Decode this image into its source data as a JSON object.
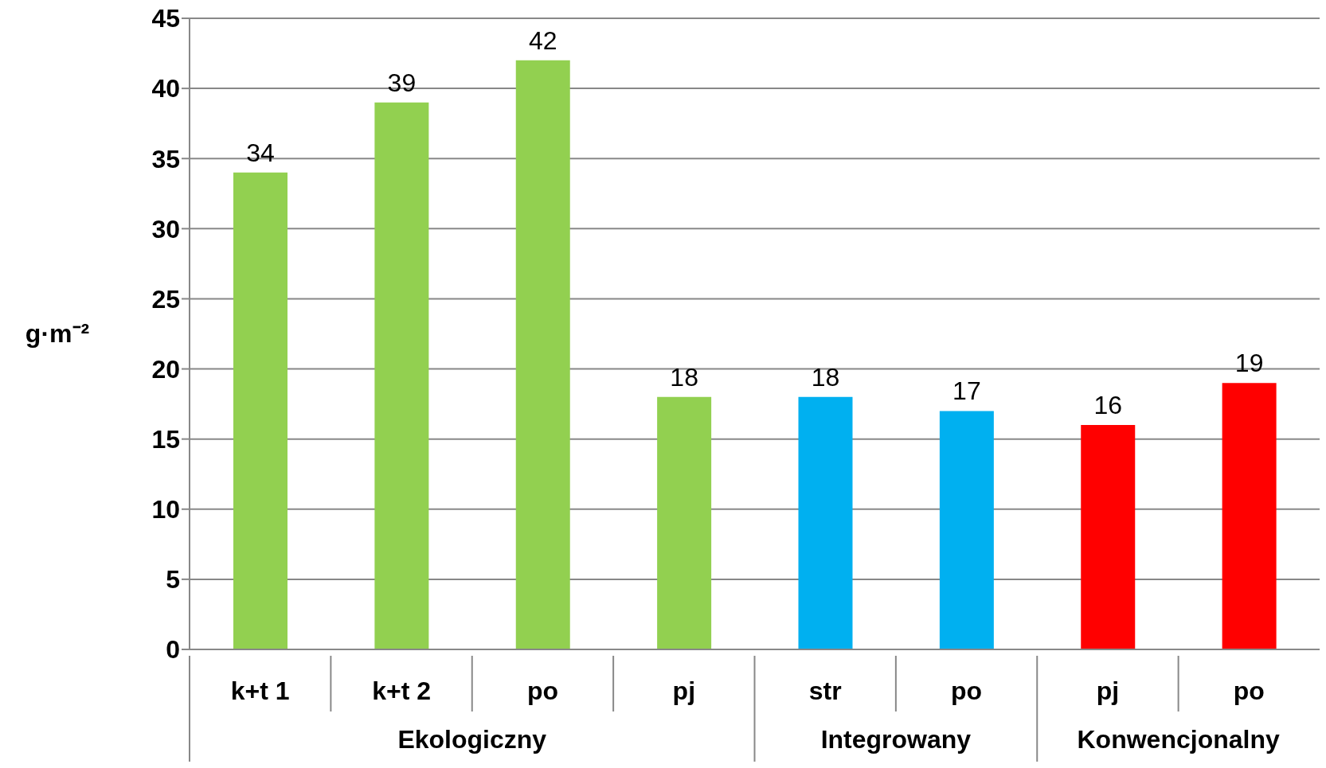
{
  "chart_data": {
    "type": "bar",
    "ylabel": "g·m⁻²",
    "categories": [
      "k+t 1",
      "k+t 2",
      "po",
      "pj",
      "str",
      "po",
      "pj",
      "po"
    ],
    "values": [
      34,
      39,
      42,
      18,
      18,
      17,
      16,
      19
    ],
    "colors": [
      "#92d050",
      "#92d050",
      "#92d050",
      "#92d050",
      "#00b0f0",
      "#00b0f0",
      "#ff0000",
      "#ff0000"
    ],
    "ylim": [
      0,
      45
    ],
    "yticks": [
      0,
      5,
      10,
      15,
      20,
      25,
      30,
      35,
      40,
      45
    ],
    "grid": "y",
    "data_labels": true,
    "annotations": [
      "Ekologiczny",
      "Integrowany",
      "Konwencjonalny"
    ]
  }
}
